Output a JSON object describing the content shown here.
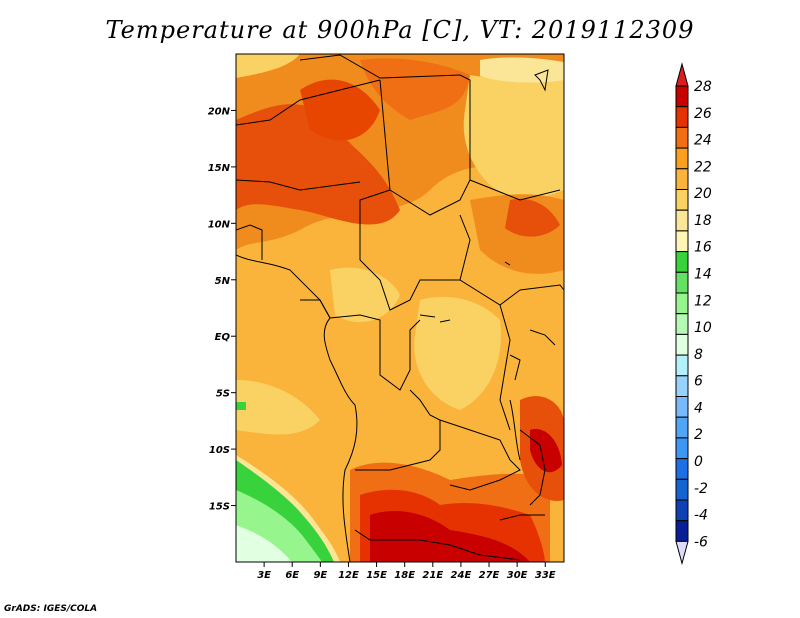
{
  "title": "Temperature at 900hPa [C], VT: 2019112309",
  "credit": "GrADS: IGES/COLA",
  "map": {
    "lon_range": [
      0,
      35
    ],
    "lat_range": [
      -20,
      25
    ],
    "y_ticks": [
      {
        "lat": 20,
        "label": "20N"
      },
      {
        "lat": 15,
        "label": "15N"
      },
      {
        "lat": 10,
        "label": "10N"
      },
      {
        "lat": 5,
        "label": "5N"
      },
      {
        "lat": 0,
        "label": "EQ"
      },
      {
        "lat": -5,
        "label": "5S"
      },
      {
        "lat": -10,
        "label": "10S"
      },
      {
        "lat": -15,
        "label": "15S"
      }
    ],
    "x_ticks": [
      {
        "lon": 3,
        "label": "3E"
      },
      {
        "lon": 6,
        "label": "6E"
      },
      {
        "lon": 9,
        "label": "9E"
      },
      {
        "lon": 12,
        "label": "12E"
      },
      {
        "lon": 15,
        "label": "15E"
      },
      {
        "lon": 18,
        "label": "18E"
      },
      {
        "lon": 21,
        "label": "21E"
      },
      {
        "lon": 24,
        "label": "24E"
      },
      {
        "lon": 27,
        "label": "27E"
      },
      {
        "lon": 30,
        "label": "30E"
      },
      {
        "lon": 33,
        "label": "33E"
      }
    ]
  },
  "colorbar": {
    "labels": [
      "28",
      "26",
      "24",
      "22",
      "20",
      "18",
      "16",
      "14",
      "12",
      "10",
      "8",
      "6",
      "4",
      "2",
      "0",
      "-2",
      "-4",
      "-6"
    ],
    "colors_top_to_bottom": [
      "#c80000",
      "#e63200",
      "#f06e14",
      "#faa01e",
      "#fab43c",
      "#fad264",
      "#fae696",
      "#fff5b4",
      "#37d23c",
      "#64e164",
      "#96f58c",
      "#b4fab4",
      "#e1ffe1",
      "#b4f0fa",
      "#96d2fa",
      "#78b9fa",
      "#50a5f5",
      "#3c97f5",
      "#1e6ee6",
      "#1464d2",
      "#0f41b4",
      "#0a1e96"
    ],
    "top_triangle": "#dc1e1e",
    "bottom_triangle": "#dcdcfa"
  }
}
